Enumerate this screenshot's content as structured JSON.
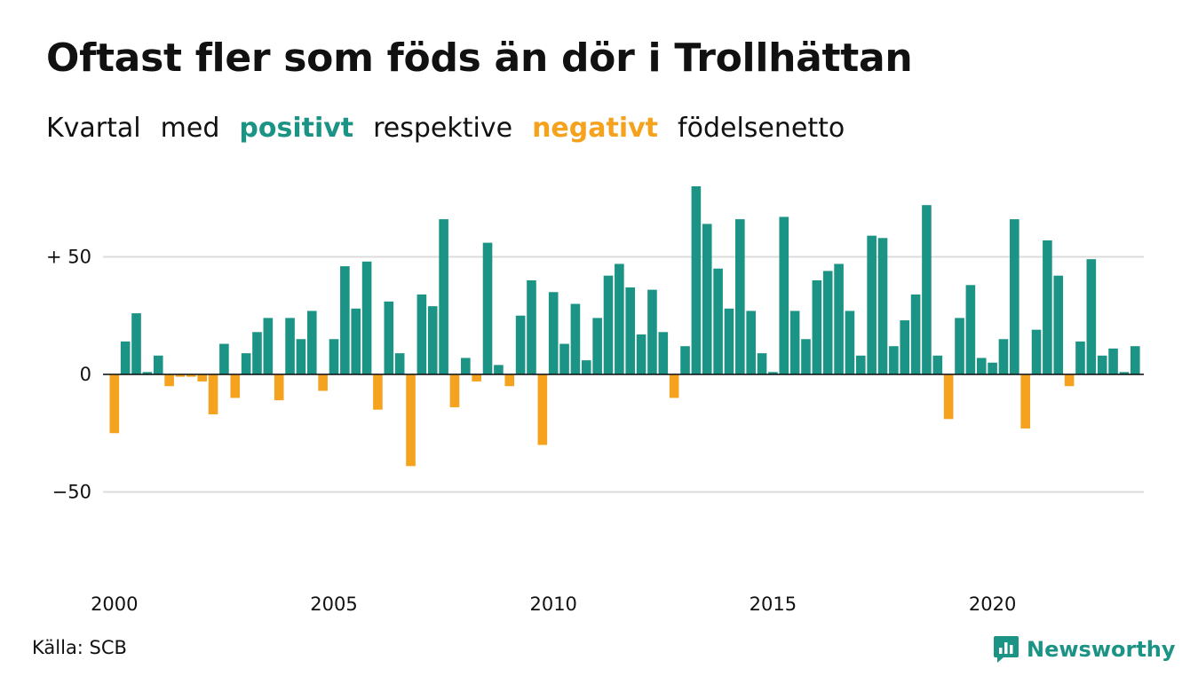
{
  "title": "Oftast fler som föds än dör i Trollhättan",
  "subtitle": {
    "w1": "Kvartal",
    "w2": "med",
    "w3": "positivt",
    "w4": "respektive",
    "w5": "negativt",
    "w6": "födelsenetto"
  },
  "source": "Källa: SCB",
  "brand": "Newsworthy",
  "colors": {
    "positive": "#1b9385",
    "negative": "#f5a21f",
    "grid": "#dcdcdc"
  },
  "chart_data": {
    "type": "bar",
    "x_start": "2000 Q1",
    "ylim": [
      -85,
      80
    ],
    "yticks": [
      {
        "value": 50,
        "label": "+ 50"
      },
      {
        "value": 0,
        "label": "0"
      },
      {
        "value": -50,
        "label": "−50"
      }
    ],
    "xticks": [
      2000,
      2005,
      2010,
      2015,
      2020
    ],
    "grid": true,
    "values": [
      -25,
      14,
      26,
      1,
      8,
      -5,
      -1,
      -1,
      -3,
      -17,
      13,
      -10,
      9,
      18,
      24,
      -11,
      24,
      15,
      27,
      -7,
      15,
      46,
      28,
      48,
      -15,
      31,
      9,
      -39,
      34,
      29,
      66,
      -14,
      7,
      -3,
      56,
      4,
      -5,
      25,
      40,
      -30,
      35,
      13,
      30,
      6,
      24,
      42,
      47,
      37,
      17,
      36,
      18,
      -10,
      12,
      80,
      64,
      45,
      28,
      66,
      27,
      9,
      1,
      67,
      27,
      15,
      40,
      44,
      47,
      27,
      8,
      59,
      58,
      12,
      23,
      34,
      72,
      8,
      -19,
      24,
      38,
      7,
      5,
      15,
      66,
      -23,
      19,
      57,
      42,
      -5,
      14,
      49,
      8,
      11,
      1,
      12
    ]
  }
}
